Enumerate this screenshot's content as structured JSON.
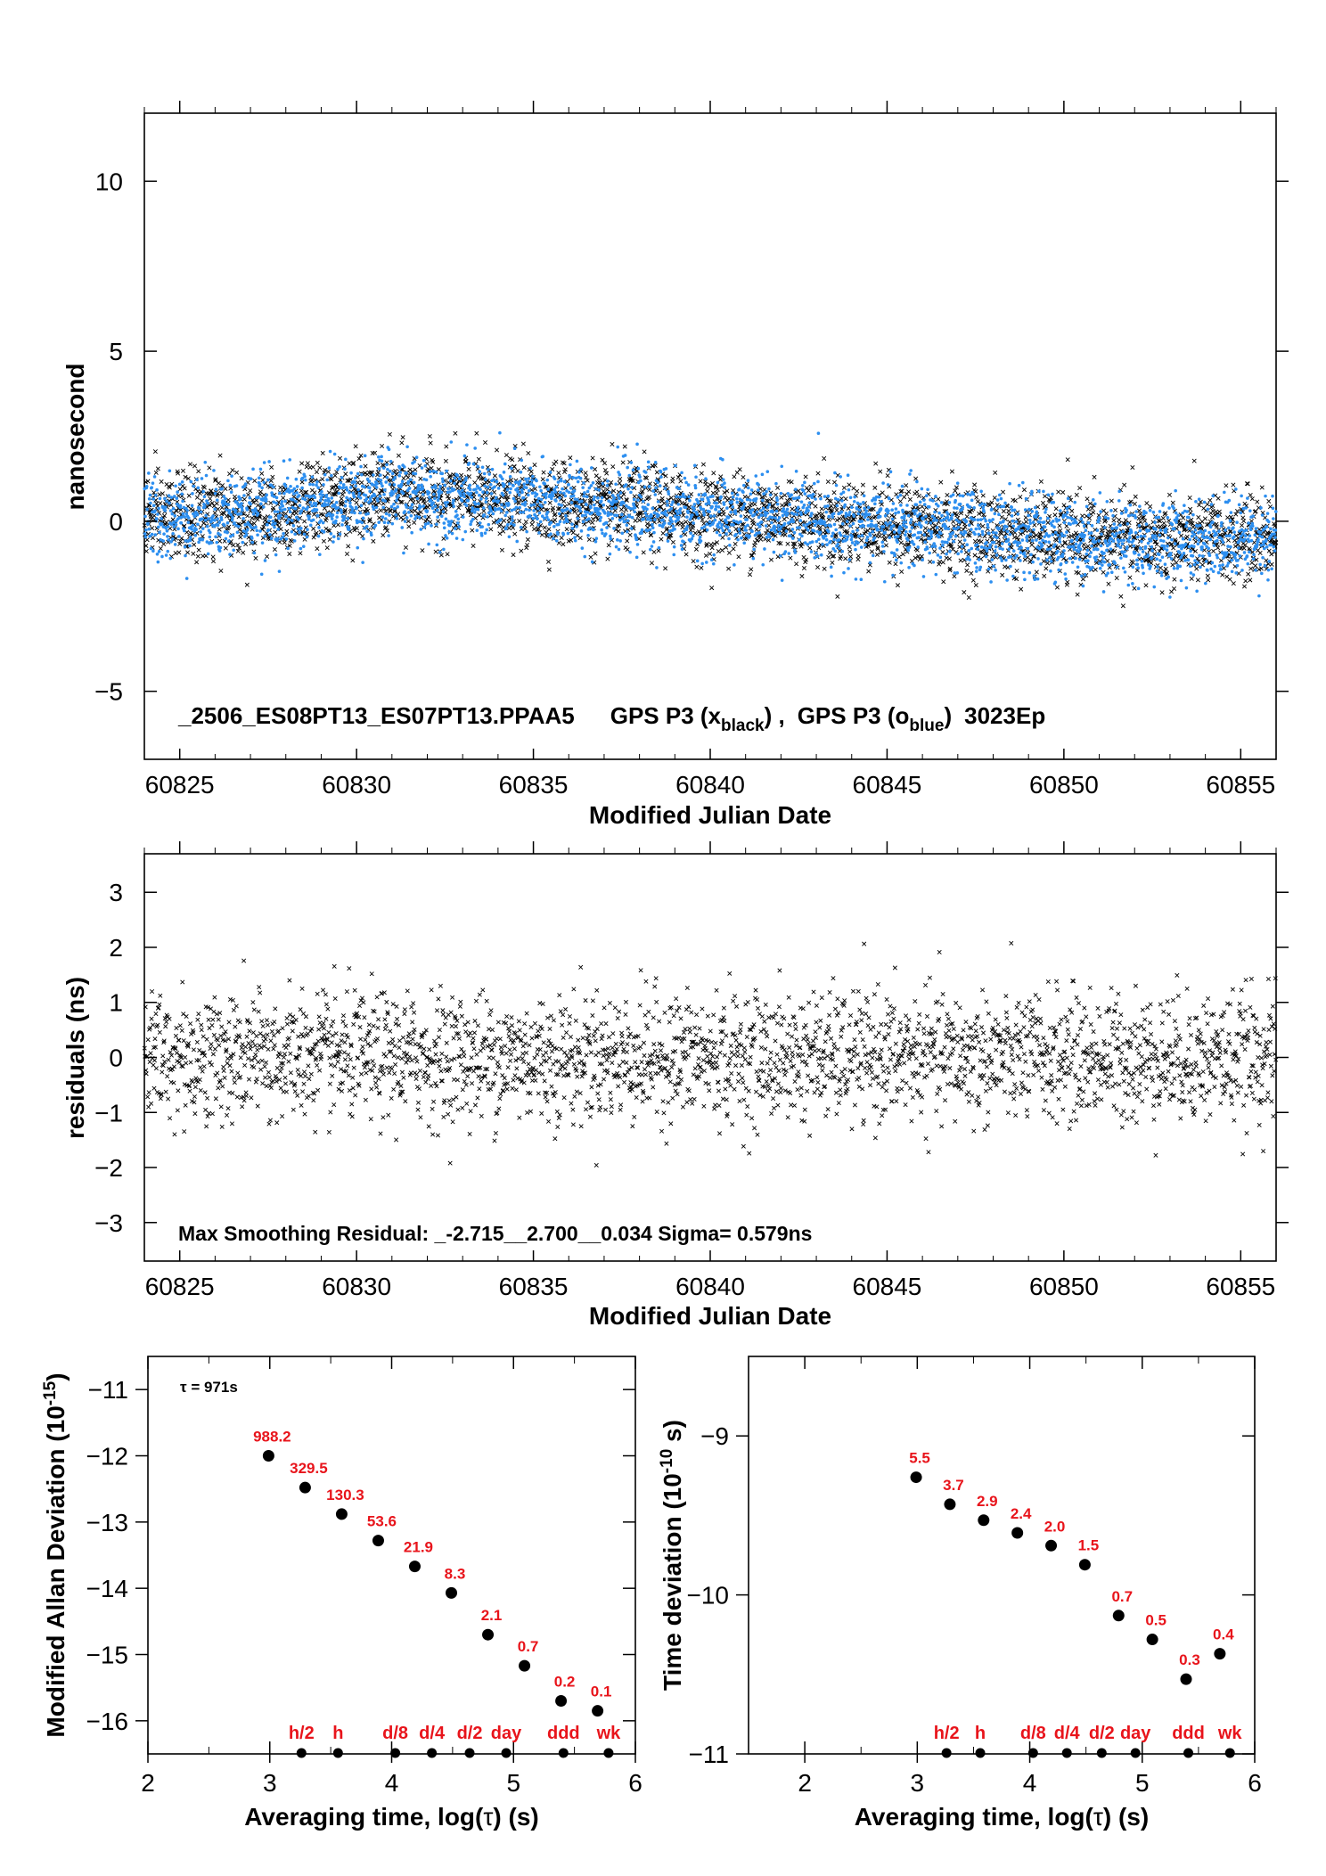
{
  "chart_data": [
    {
      "id": "timeseries",
      "type": "scatter",
      "title": "",
      "xlabel": "Modified Julian Date",
      "ylabel": "nanosecond",
      "xlim": [
        60824,
        60856
      ],
      "ylim": [
        -7,
        12
      ],
      "xticks": [
        "60825",
        "60830",
        "60835",
        "60840",
        "60845",
        "60850",
        "60855"
      ],
      "yticks": [
        "10",
        "5",
        "0",
        "−5"
      ],
      "annotation_parts": {
        "id_text": "_2506_ES08PT13_ES07PT13.PPAA5",
        "gps1": "GPS P3 (x",
        "gps1_sub": "black",
        "gps1_close": ") ,",
        "gps2": "GPS P3 (o",
        "gps2_sub": "blue",
        "gps2_close": ")",
        "epochs": "3023Ep"
      },
      "series": [
        {
          "marker": "x",
          "color": "#000000",
          "trend": [
            [
              60824,
              0.1
            ],
            [
              60828,
              0.3
            ],
            [
              60831,
              0.8
            ],
            [
              60836,
              0.5
            ],
            [
              60840,
              0.2
            ],
            [
              60845,
              -0.1
            ],
            [
              60850,
              -0.5
            ],
            [
              60853,
              -0.6
            ],
            [
              60856,
              -0.4
            ]
          ],
          "spread_sigma_ns": 0.65
        },
        {
          "marker": "o",
          "color": "#2d8ff0",
          "trend": [
            [
              60824,
              0.1
            ],
            [
              60828,
              0.3
            ],
            [
              60831,
              0.8
            ],
            [
              60836,
              0.5
            ],
            [
              60840,
              0.2
            ],
            [
              60845,
              -0.1
            ],
            [
              60850,
              -0.5
            ],
            [
              60853,
              -0.6
            ],
            [
              60856,
              -0.4
            ]
          ],
          "spread_sigma_ns": 0.6
        }
      ],
      "grid": false
    },
    {
      "id": "residuals",
      "type": "scatter",
      "title": "",
      "xlabel": "Modified Julian Date",
      "ylabel": "residuals (ns)",
      "xlim": [
        60824,
        60856
      ],
      "ylim": [
        -3.7,
        3.7
      ],
      "xticks": [
        "60825",
        "60830",
        "60835",
        "60840",
        "60845",
        "60850",
        "60855"
      ],
      "yticks": [
        "3",
        "2",
        "1",
        "0",
        "−1",
        "−2",
        "−3"
      ],
      "annotation": "Max Smoothing Residual: _-2.715__2.700__0.034  Sigma= 0.579ns",
      "series": [
        {
          "marker": "x",
          "color": "#000000",
          "spread_sigma_ns": 0.579,
          "min": -2.715,
          "max": 2.7
        }
      ],
      "grid": false
    },
    {
      "id": "mdev",
      "type": "scatter",
      "title": "",
      "xlabel_parts": {
        "text": "Averaging time, log(",
        "symbol": "τ",
        "end": ") (s)"
      },
      "ylabel_parts": {
        "text": "Modified Allan Deviation (10",
        "sup": "-15",
        "end": ")"
      },
      "xlim": [
        2,
        6
      ],
      "ylim": [
        -16.5,
        -10.5
      ],
      "xticks": [
        "2",
        "3",
        "4",
        "5",
        "6"
      ],
      "yticks": [
        "−11",
        "−12",
        "−13",
        "−14",
        "−15",
        "−16"
      ],
      "tau_note_parts": {
        "symbol": "τ",
        "text": " = 971s"
      },
      "x": [
        2.99,
        3.29,
        3.59,
        3.89,
        4.19,
        4.49,
        4.79,
        5.09,
        5.39,
        5.69
      ],
      "y": [
        -12.0,
        -12.48,
        -12.88,
        -13.28,
        -13.67,
        -14.07,
        -14.7,
        -15.17,
        -15.7,
        -15.85
      ],
      "labels": [
        "988.2",
        "329.5",
        "130.3",
        "53.6",
        "21.9",
        "8.3",
        "2.1",
        "0.7",
        "0.2",
        "0.1"
      ],
      "markers": [
        {
          "label": "h/2",
          "x": 3.26
        },
        {
          "label": "h",
          "x": 3.56
        },
        {
          "label": "d/8",
          "x": 4.03
        },
        {
          "label": "d/4",
          "x": 4.33
        },
        {
          "label": "d/2",
          "x": 4.64
        },
        {
          "label": "day",
          "x": 4.94
        },
        {
          "label": "ddd",
          "x": 5.41
        },
        {
          "label": "wk",
          "x": 5.78
        }
      ],
      "grid": false
    },
    {
      "id": "tdev",
      "type": "scatter",
      "title": "",
      "xlabel_parts": {
        "text": "Averaging time, log(",
        "symbol": "τ",
        "end": ") (s)"
      },
      "ylabel_parts": {
        "text": "Time deviation (10",
        "sup": "-10",
        "end": " s)"
      },
      "xlim": [
        1.5,
        6
      ],
      "ylim": [
        -11,
        -8.5
      ],
      "xticks": [
        "2",
        "3",
        "4",
        "5",
        "6"
      ],
      "yticks": [
        "−9",
        "−10",
        "−11"
      ],
      "x": [
        2.99,
        3.29,
        3.59,
        3.89,
        4.19,
        4.49,
        4.79,
        5.09,
        5.39,
        5.69
      ],
      "y": [
        -9.26,
        -9.43,
        -9.53,
        -9.61,
        -9.69,
        -9.81,
        -10.13,
        -10.28,
        -10.53,
        -10.37
      ],
      "labels": [
        "5.5",
        "3.7",
        "2.9",
        "2.4",
        "2.0",
        "1.5",
        "0.7",
        "0.5",
        "0.3",
        "0.4"
      ],
      "markers": [
        {
          "label": "h/2",
          "x": 3.26
        },
        {
          "label": "h",
          "x": 3.56
        },
        {
          "label": "d/8",
          "x": 4.03
        },
        {
          "label": "d/4",
          "x": 4.33
        },
        {
          "label": "d/2",
          "x": 4.64
        },
        {
          "label": "day",
          "x": 4.94
        },
        {
          "label": "ddd",
          "x": 5.41
        },
        {
          "label": "wk",
          "x": 5.78
        }
      ],
      "grid": false
    }
  ]
}
